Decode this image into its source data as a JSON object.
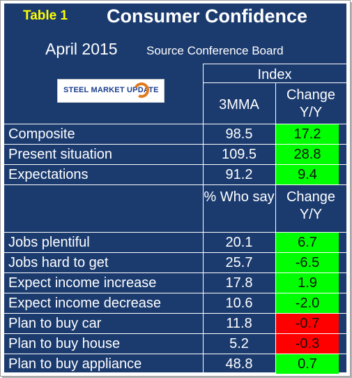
{
  "header": {
    "table_label": "Table 1",
    "title": "Consumer Confidence",
    "date": "April 2015",
    "source": "Source Conference Board"
  },
  "logo": {
    "text": "STEEL MARKET UPDATE"
  },
  "columns": {
    "group_label": "Index",
    "col1": "3MMA",
    "col2": "Change Y/Y",
    "col1_b": "% Who say",
    "col2_b": "Change Y/Y"
  },
  "section1": [
    {
      "label": "Composite",
      "value": "98.5",
      "change": "17.2",
      "status": "positive"
    },
    {
      "label": "Present situation",
      "value": "109.5",
      "change": "28.8",
      "status": "positive"
    },
    {
      "label": "Expectations",
      "value": "91.2",
      "change": "9.4",
      "status": "positive"
    }
  ],
  "section2": [
    {
      "label": "Jobs plentiful",
      "value": "20.1",
      "change": "6.7",
      "status": "positive"
    },
    {
      "label": "Jobs hard to get",
      "value": "25.7",
      "change": "-6.5",
      "status": "positive"
    },
    {
      "label": "Expect income increase",
      "value": "17.8",
      "change": "1.9",
      "status": "positive"
    },
    {
      "label": "Expect income decrease",
      "value": "10.6",
      "change": "-2.0",
      "status": "positive"
    },
    {
      "label": "Plan to buy car",
      "value": "11.8",
      "change": "-0.7",
      "status": "negative"
    },
    {
      "label": "Plan to buy house",
      "value": "5.2",
      "change": "-0.3",
      "status": "negative"
    },
    {
      "label": "Plan to buy appliance",
      "value": "48.8",
      "change": "0.7",
      "status": "positive"
    }
  ],
  "colors": {
    "panel": "#1b3b6f",
    "positive": "#00ff00",
    "negative": "#ff0000",
    "table_label": "#ffff00"
  }
}
